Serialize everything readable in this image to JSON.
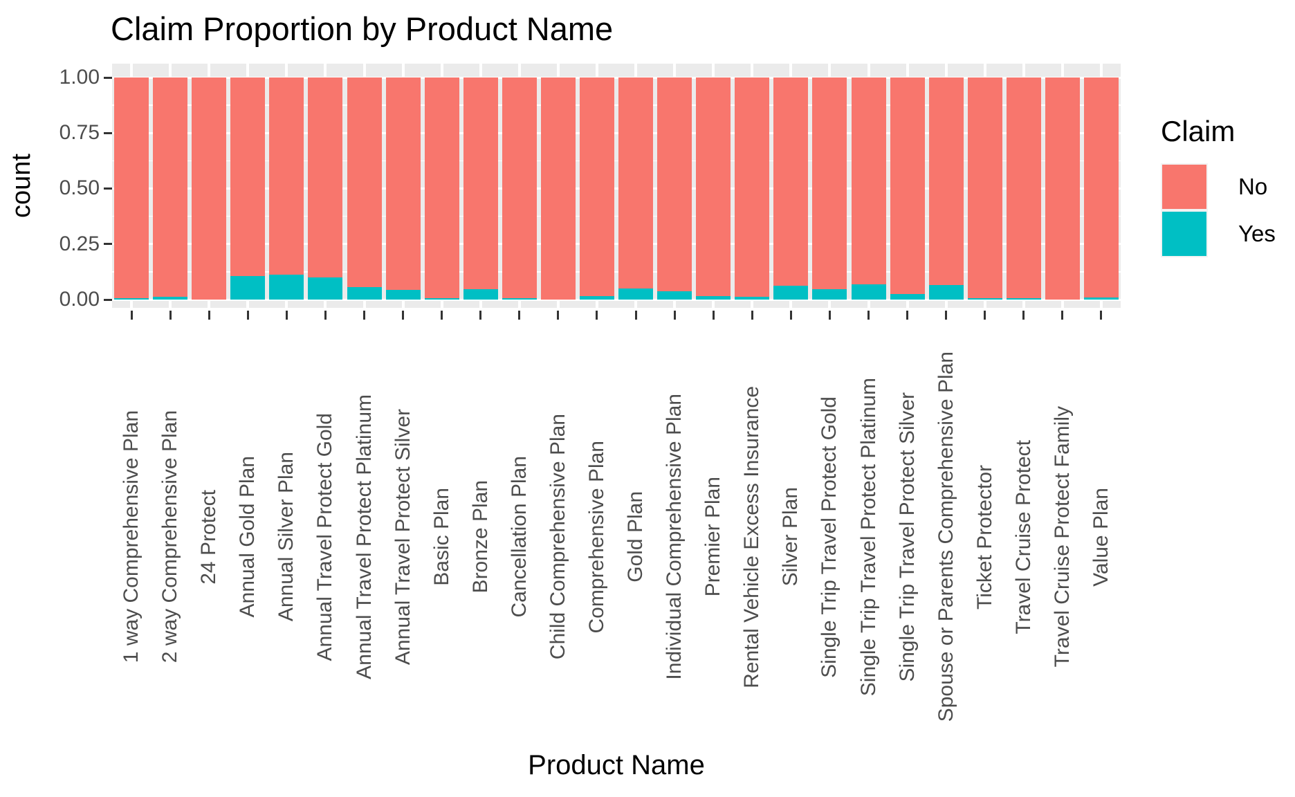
{
  "title": "Claim Proportion by Product Name",
  "y_axis": {
    "title": "count",
    "tick_labels": [
      "0.00",
      "0.25",
      "0.50",
      "0.75",
      "1.00"
    ]
  },
  "x_axis": {
    "title": "Product Name"
  },
  "legend": {
    "title": "Claim",
    "items": [
      {
        "label": "No",
        "color": "#F8766D"
      },
      {
        "label": "Yes",
        "color": "#00BFC4"
      }
    ]
  },
  "colors": {
    "no": "#F8766D",
    "yes": "#00BFC4",
    "panel_background": "#EBEBEB",
    "gridline": "#FFFFFF",
    "axis_text": "#4D4D4D",
    "tick_mark": "#333333"
  },
  "chart_data": {
    "type": "bar",
    "stacked": true,
    "position": "fill",
    "title": "Claim Proportion by Product Name",
    "xlabel": "Product Name",
    "ylabel": "count",
    "ylim": [
      0,
      1
    ],
    "ytick_values": [
      0,
      0.25,
      0.5,
      0.75,
      1.0
    ],
    "ytick_minor_values": [
      0.125,
      0.375,
      0.625,
      0.875
    ],
    "grid": true,
    "legend_position": "right",
    "categories": [
      "1 way Comprehensive Plan",
      "2 way Comprehensive Plan",
      "24 Protect",
      "Annual Gold Plan",
      "Annual Silver Plan",
      "Annual Travel Protect Gold",
      "Annual Travel Protect Platinum",
      "Annual Travel Protect Silver",
      "Basic Plan",
      "Bronze Plan",
      "Cancellation Plan",
      "Child Comprehensive Plan",
      "Comprehensive Plan",
      "Gold Plan",
      "Individual Comprehensive Plan",
      "Premier Plan",
      "Rental Vehicle Excess Insurance",
      "Silver Plan",
      "Single Trip Travel Protect Gold",
      "Single Trip Travel Protect Platinum",
      "Single Trip Travel Protect Silver",
      "Spouse or Parents Comprehensive Plan",
      "Ticket Protector",
      "Travel Cruise Protect",
      "Travel Cruise Protect Family",
      "Value Plan"
    ],
    "series": [
      {
        "name": "No",
        "color": "#F8766D",
        "values": [
          0.995,
          0.987,
          1.0,
          0.895,
          0.888,
          0.9,
          0.944,
          0.957,
          0.993,
          0.952,
          0.994,
          1.0,
          0.985,
          0.951,
          0.962,
          0.985,
          0.987,
          0.939,
          0.954,
          0.931,
          0.975,
          0.934,
          0.993,
          0.993,
          1.0,
          0.99
        ]
      },
      {
        "name": "Yes",
        "color": "#00BFC4",
        "values": [
          0.005,
          0.013,
          0.0,
          0.105,
          0.112,
          0.1,
          0.056,
          0.043,
          0.007,
          0.048,
          0.006,
          0.0,
          0.015,
          0.049,
          0.038,
          0.015,
          0.013,
          0.061,
          0.046,
          0.069,
          0.025,
          0.066,
          0.007,
          0.007,
          0.0,
          0.01
        ]
      }
    ]
  }
}
